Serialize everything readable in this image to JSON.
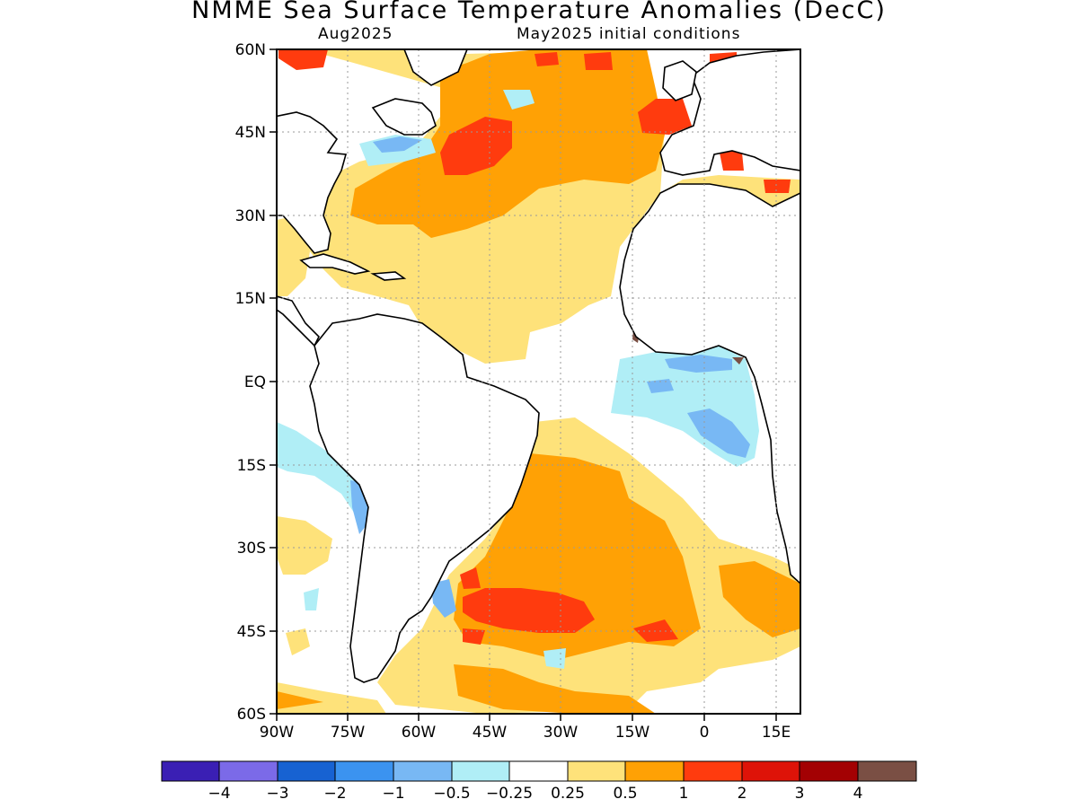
{
  "header": {
    "title": "NMME Sea Surface Temperature Anomalies (DecC)",
    "valid_month": "Aug2025",
    "init": "May2025 initial conditions"
  },
  "axes": {
    "lat_labels": [
      "60N",
      "45N",
      "30N",
      "15N",
      "EQ",
      "15S",
      "30S",
      "45S",
      "60S"
    ],
    "lon_labels": [
      "90W",
      "75W",
      "60W",
      "45W",
      "30W",
      "15W",
      "0",
      "15E"
    ]
  },
  "colorbar": {
    "colors": [
      "#3a1fb4",
      "#7b6ae8",
      "#1762d2",
      "#3b93f0",
      "#78b8f4",
      "#b0eef6",
      "#ffffff",
      "#fee27a",
      "#ffa105",
      "#ff3b0e",
      "#de1308",
      "#a30103",
      "#7a4f44"
    ],
    "labels": [
      "−4",
      "−3",
      "−2",
      "−1",
      "−0.5",
      "−0.25",
      "0.25",
      "0.5",
      "1",
      "2",
      "3",
      "4"
    ]
  },
  "colors": {
    "light_yellow": "#fee27a",
    "orange": "#ffa105",
    "red": "#ff3b0e",
    "cyan": "#b0eef6",
    "light_blue": "#78b8f4",
    "blue": "#3b93f0",
    "brown": "#7a4f44"
  }
}
